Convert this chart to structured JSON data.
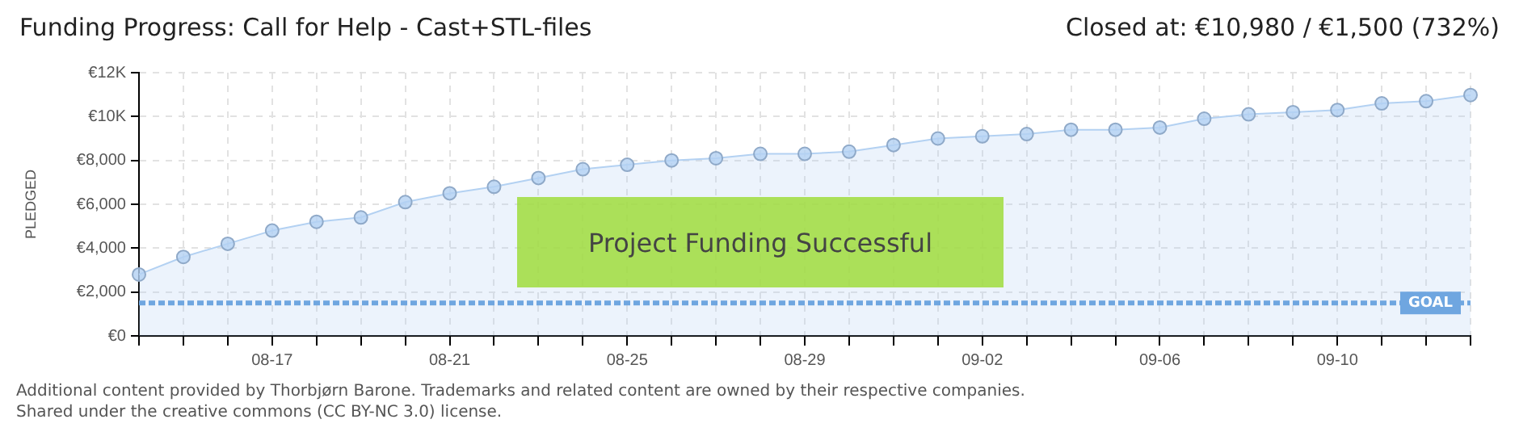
{
  "chart_data": {
    "type": "area",
    "title": "Funding Progress: Call for Help - Cast+STL-files",
    "subtitle": "Closed at:  €10,980 /  €1,500 (732%)",
    "ylabel": "PLEDGED",
    "categories": [
      null,
      null,
      null,
      "08-17",
      null,
      null,
      null,
      "08-21",
      null,
      null,
      null,
      "08-25",
      null,
      null,
      null,
      "08-29",
      null,
      null,
      null,
      "09-02",
      null,
      null,
      null,
      "09-06",
      null,
      null,
      null,
      "09-10",
      null,
      null,
      null
    ],
    "values": [
      2800,
      3600,
      4200,
      4800,
      5200,
      5400,
      6100,
      6500,
      6800,
      7200,
      7600,
      7800,
      8000,
      8100,
      8300,
      8300,
      8400,
      8700,
      9000,
      9100,
      9200,
      9400,
      9400,
      9500,
      9900,
      10100,
      10200,
      10300,
      10600,
      10700,
      10980
    ],
    "color": "#b3d1f2",
    "marker": "circle",
    "grid": true,
    "ylim": [
      0,
      12000
    ],
    "yticks": [
      {
        "value": 0,
        "label": "€0"
      },
      {
        "value": 2000,
        "label": "€2,000"
      },
      {
        "value": 4000,
        "label": "€4,000"
      },
      {
        "value": 6000,
        "label": "€6,000"
      },
      {
        "value": 8000,
        "label": "€8,000"
      },
      {
        "value": 10000,
        "label": "€10K"
      },
      {
        "value": 12000,
        "label": "€12K"
      }
    ],
    "ref_lines": [
      {
        "axis": "y",
        "value": 1500,
        "label": "GOAL",
        "color": "#6fa6e0",
        "line_style": "dashed"
      }
    ],
    "annotations": [
      "Project Funding Successful",
      "Additional content provided by Thorbjørn Barone. Trademarks and related content are owned by their respective companies.",
      "Shared under the creative commons (CC BY-NC 3.0) license."
    ]
  }
}
